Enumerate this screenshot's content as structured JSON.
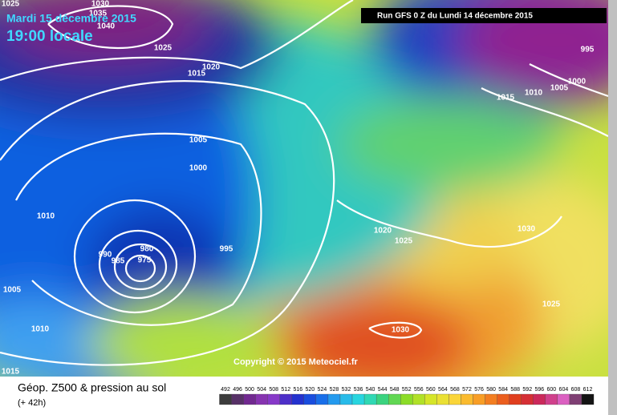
{
  "header": {
    "date": "Mardi 15 décembre 2015",
    "time": "19:00 locale",
    "run": "Run GFS 0 Z du Lundi 14 décembre 2015"
  },
  "copyright": "Copyright © 2015 Meteociel.fr",
  "footer": {
    "title": "Géop. Z500 & pression au sol",
    "lead": "(+ 42h)"
  },
  "legend": {
    "levels": [
      492,
      496,
      500,
      504,
      508,
      512,
      516,
      520,
      524,
      528,
      532,
      536,
      540,
      544,
      548,
      552,
      556,
      560,
      564,
      568,
      572,
      576,
      580,
      584,
      588,
      592,
      596,
      600,
      604,
      608,
      612
    ]
  },
  "isobar_labels": [
    "1025",
    "1030",
    "1035",
    "1040",
    "1025",
    "1015",
    "1020",
    "1005",
    "1000",
    "1010",
    "980",
    "990",
    "985",
    "975",
    "995",
    "1005",
    "1010",
    "1015",
    "1020",
    "1025",
    "1030",
    "1030",
    "1025",
    "995",
    "1000",
    "1005",
    "1010",
    "1015"
  ]
}
